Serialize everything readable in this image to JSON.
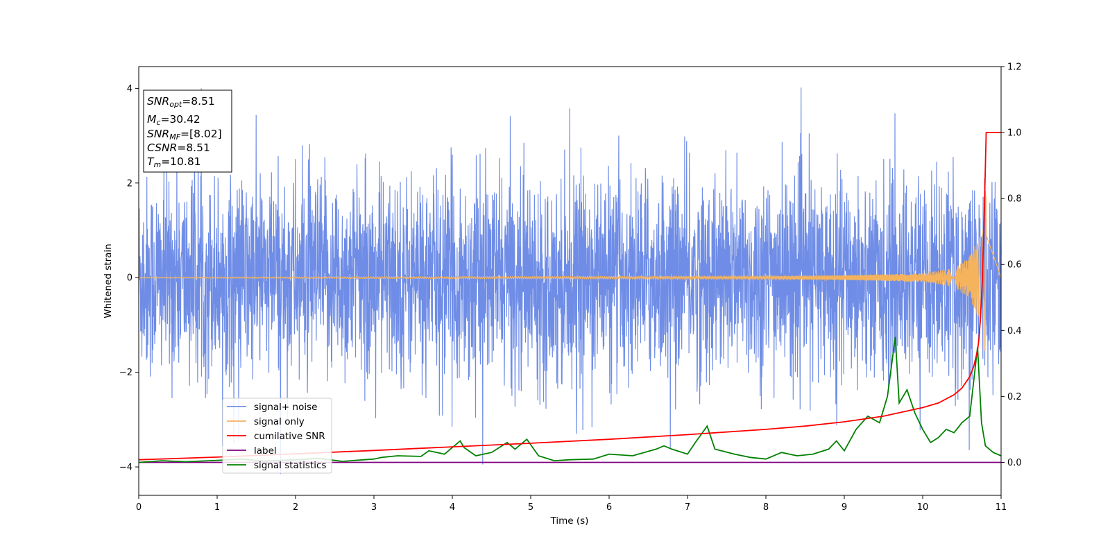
{
  "chart_data": {
    "type": "line",
    "xlabel": "Time (s)",
    "ylabel": "Whitened strain",
    "xlim": [
      0,
      11
    ],
    "ylim": [
      -4.6,
      4.46
    ],
    "y2lim": [
      -0.1,
      1.2
    ],
    "x_ticks": [
      "0",
      "1",
      "2",
      "3",
      "4",
      "5",
      "6",
      "7",
      "8",
      "9",
      "10",
      "11"
    ],
    "y_ticks": [
      "-4",
      "-2",
      "0",
      "2",
      "4"
    ],
    "y2_ticks": [
      "0.0",
      "0.2",
      "0.4",
      "0.6",
      "0.8",
      "1.0",
      "1.2"
    ],
    "grid": false,
    "legend_position": "lower-left",
    "info_box": [
      {
        "label": "SNR",
        "sub": "opt",
        "value": "=8.51"
      },
      {
        "label": "M",
        "sub": "c",
        "value": "=30.42"
      },
      {
        "label": "SNR",
        "sub": "MF",
        "value": "=[8.02]"
      },
      {
        "label": "CSNR",
        "sub": "",
        "value": "=8.51"
      },
      {
        "label": "T",
        "sub": "m",
        "value": "=10.81"
      }
    ],
    "series": [
      {
        "name": "signal+ noise",
        "axis": "left",
        "color": "#6f8de6",
        "description_values": {
          "typical_range": [
            -2.5,
            2.5
          ],
          "max": 4.05,
          "min": -4.15
        }
      },
      {
        "name": "signal only",
        "axis": "left",
        "color": "#f5b35e",
        "envelope": {
          "x": [
            0,
            8,
            9,
            10,
            10.4,
            10.6,
            10.75,
            10.81
          ],
          "amplitude": [
            0.01,
            0.03,
            0.05,
            0.09,
            0.2,
            0.45,
            1.0,
            1.8
          ]
        }
      },
      {
        "name": "cumilative SNR",
        "axis": "right",
        "color": "#ff0000",
        "x": [
          0,
          1,
          2,
          3,
          4,
          5,
          6,
          7,
          8,
          8.5,
          9,
          9.5,
          10,
          10.2,
          10.4,
          10.5,
          10.6,
          10.65,
          10.7,
          10.72,
          10.74,
          10.76,
          10.78,
          10.8,
          10.81,
          11
        ],
        "y": [
          0.008,
          0.016,
          0.026,
          0.036,
          0.047,
          0.058,
          0.07,
          0.084,
          0.1,
          0.11,
          0.123,
          0.14,
          0.166,
          0.18,
          0.205,
          0.225,
          0.26,
          0.29,
          0.34,
          0.38,
          0.45,
          0.55,
          0.7,
          0.9,
          1.0,
          1.0
        ]
      },
      {
        "name": "label",
        "axis": "right",
        "color": "#800080",
        "x": [
          0,
          11
        ],
        "y": [
          0,
          0
        ]
      },
      {
        "name": "signal statistics",
        "axis": "right",
        "color": "#008000",
        "x": [
          0,
          0.3,
          0.6,
          1.0,
          1.3,
          1.6,
          2.0,
          2.3,
          2.6,
          3.0,
          3.1,
          3.3,
          3.6,
          3.7,
          3.9,
          4.0,
          4.1,
          4.15,
          4.3,
          4.5,
          4.7,
          4.8,
          4.95,
          5.1,
          5.3,
          5.5,
          5.8,
          6.0,
          6.3,
          6.6,
          6.7,
          6.8,
          7.0,
          7.1,
          7.25,
          7.35,
          7.6,
          7.8,
          8.0,
          8.2,
          8.4,
          8.6,
          8.8,
          8.9,
          9.0,
          9.15,
          9.3,
          9.45,
          9.55,
          9.65,
          9.7,
          9.8,
          9.9,
          10.0,
          10.1,
          10.2,
          10.3,
          10.4,
          10.5,
          10.6,
          10.7,
          10.75,
          10.8,
          10.9,
          11
        ],
        "y": [
          0.0,
          0.005,
          0.002,
          0.006,
          0.01,
          0.004,
          0.008,
          0.012,
          0.003,
          0.01,
          0.015,
          0.02,
          0.018,
          0.035,
          0.025,
          0.045,
          0.065,
          0.045,
          0.02,
          0.03,
          0.06,
          0.04,
          0.07,
          0.02,
          0.005,
          0.008,
          0.01,
          0.025,
          0.02,
          0.04,
          0.05,
          0.04,
          0.025,
          0.06,
          0.11,
          0.04,
          0.025,
          0.015,
          0.01,
          0.03,
          0.02,
          0.025,
          0.04,
          0.065,
          0.035,
          0.1,
          0.14,
          0.12,
          0.2,
          0.38,
          0.18,
          0.22,
          0.15,
          0.1,
          0.06,
          0.075,
          0.1,
          0.09,
          0.12,
          0.14,
          0.35,
          0.12,
          0.05,
          0.03,
          0.02
        ]
      }
    ]
  }
}
